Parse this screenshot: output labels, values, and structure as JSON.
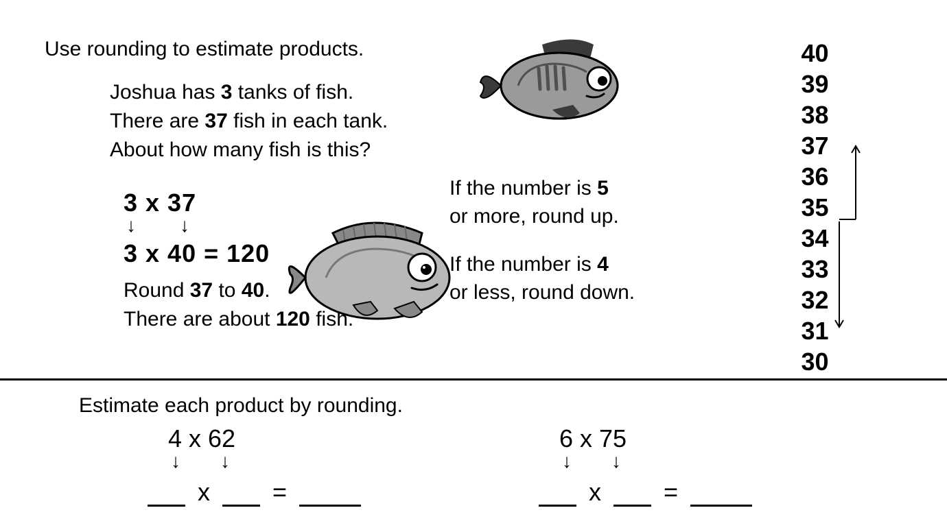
{
  "colors": {
    "text": "#000000",
    "bg": "#ffffff",
    "fish_body": "#9a9a9a",
    "fish_body_light": "#b8b8b8",
    "fish_dark": "#3a3a3a"
  },
  "typography": {
    "body_size": 30,
    "math_size": 36,
    "number_line_size": 36
  },
  "top": {
    "instruction": "Use rounding to estimate products.",
    "problem_lines": [
      "Joshua has <b>3</b> tanks of fish.",
      "There are <b>37</b> fish in each tank.",
      "About how many fish is this?"
    ],
    "worked": {
      "line1": "3 x 37",
      "line2": "3 x 40 =  120",
      "answer1": "Round <b>37</b> to <b>40</b>.",
      "answer2": "There are about  <b>120</b> fish."
    },
    "rules": {
      "rule1a": "If the number is",
      "rule1b": "5",
      "rule1c": "or more, round up.",
      "rule2a": "If the number is",
      "rule2b": "4",
      "rule2c": "or less, round down."
    },
    "number_line": [
      "40",
      "39",
      "38",
      "37",
      "36",
      "35",
      "34",
      "33",
      "32",
      "31",
      "30"
    ]
  },
  "bottom": {
    "instruction": "Estimate each product by rounding.",
    "exercises": [
      {
        "problem": "4 x 62"
      },
      {
        "problem": "6 x 75"
      }
    ],
    "blank_widths": {
      "operand": 55,
      "result": 90
    }
  }
}
